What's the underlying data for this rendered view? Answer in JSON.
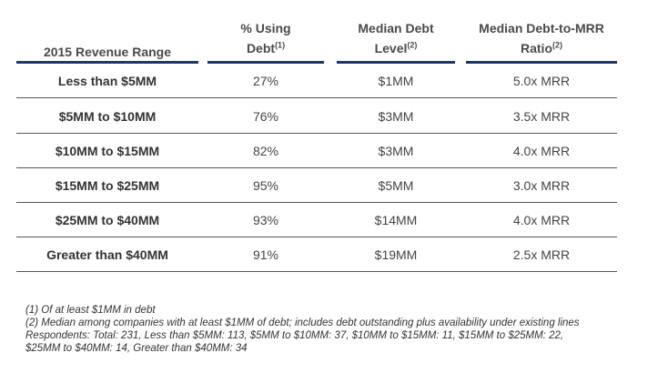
{
  "table": {
    "headers": {
      "range": "2015 Revenue Range",
      "pct_line1": "% Using",
      "pct_line2": "Debt",
      "pct_sup": "(1)",
      "debt_line1": "Median Debt",
      "debt_line2": "Level",
      "debt_sup": "(2)",
      "ratio_line1": "Median Debt-to-MRR",
      "ratio_line2": "Ratio",
      "ratio_sup": "(2)"
    },
    "rows": [
      {
        "range": "Less than $5MM",
        "pct": "27%",
        "debt": "$1MM",
        "ratio": "5.0x MRR"
      },
      {
        "range": "$5MM to $10MM",
        "pct": "76%",
        "debt": "$3MM",
        "ratio": "3.5x MRR"
      },
      {
        "range": "$10MM to $15MM",
        "pct": "82%",
        "debt": "$3MM",
        "ratio": "4.0x MRR"
      },
      {
        "range": "$15MM to $25MM",
        "pct": "95%",
        "debt": "$5MM",
        "ratio": "3.0x MRR"
      },
      {
        "range": "$25MM to $40MM",
        "pct": "93%",
        "debt": "$14MM",
        "ratio": "4.0x MRR"
      },
      {
        "range": "Greater than $40MM",
        "pct": "91%",
        "debt": "$19MM",
        "ratio": "2.5x MRR"
      }
    ]
  },
  "footnotes": [
    "(1) Of at least $1MM in debt",
    "(2) Median among companies with at least $1MM of debt; includes debt outstanding plus availability under existing lines",
    "Respondents: Total: 231, Less than $5MM: 113, $5MM to $10MM: 37, $10MM to $15MM: 11, $15MM to $25MM: 22,",
    "$25MM to $40MM: 14, Greater than $40MM: 34"
  ],
  "colors": {
    "header_rule": "#1f3864",
    "row_rule": "#555555"
  }
}
